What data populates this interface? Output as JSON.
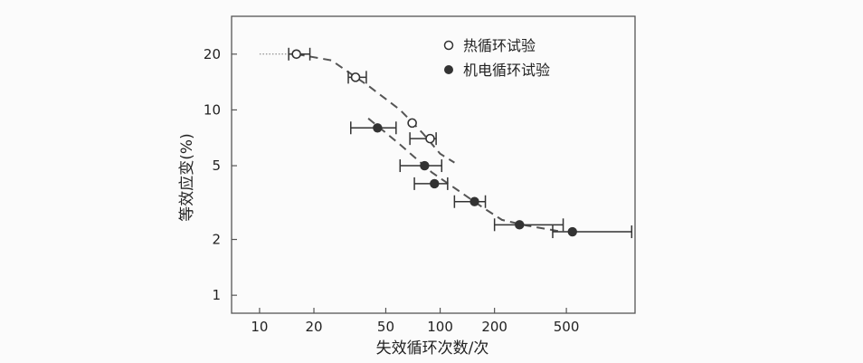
{
  "chart_data": {
    "type": "scatter",
    "x_scale": "log",
    "y_scale": "log",
    "xlabel": "失效循环次数/次",
    "ylabel": "等效应变(%)",
    "xlim": [
      7,
      1200
    ],
    "ylim": [
      0.8,
      32
    ],
    "x_ticks": [
      {
        "value": 10,
        "label": "10"
      },
      {
        "value": 20,
        "label": "20"
      },
      {
        "value": 50,
        "label": "50"
      },
      {
        "value": 100,
        "label": "100"
      },
      {
        "value": 200,
        "label": "200"
      },
      {
        "value": 500,
        "label": "500"
      }
    ],
    "y_ticks": [
      {
        "value": 1,
        "label": "1"
      },
      {
        "value": 2,
        "label": "2"
      },
      {
        "value": 5,
        "label": "5"
      },
      {
        "value": 10,
        "label": "10"
      },
      {
        "value": 20,
        "label": "20"
      }
    ],
    "legend_position": "top-right",
    "series": [
      {
        "name": "热循环试验",
        "marker": "open-circle",
        "points": [
          {
            "x": 16,
            "y": 20,
            "xerr": [
              14.5,
              19
            ]
          },
          {
            "x": 34,
            "y": 15,
            "xerr": [
              31,
              39
            ]
          },
          {
            "x": 70,
            "y": 8.5,
            "xerr": null
          },
          {
            "x": 88,
            "y": 7,
            "xerr": [
              68,
              95
            ]
          }
        ],
        "trend": [
          [
            16,
            20
          ],
          [
            25,
            18.5
          ],
          [
            40,
            13.5
          ],
          [
            60,
            10
          ],
          [
            80,
            7.5
          ],
          [
            100,
            5.8
          ],
          [
            120,
            5.2
          ]
        ]
      },
      {
        "name": "机电循环试验",
        "marker": "filled-circle",
        "points": [
          {
            "x": 45,
            "y": 8,
            "xerr": [
              32,
              57
            ]
          },
          {
            "x": 82,
            "y": 5,
            "xerr": [
              60,
              102
            ]
          },
          {
            "x": 93,
            "y": 4,
            "xerr": [
              72,
              110
            ]
          },
          {
            "x": 155,
            "y": 3.2,
            "xerr": [
              120,
              178
            ]
          },
          {
            "x": 275,
            "y": 2.4,
            "xerr": [
              200,
              480
            ]
          },
          {
            "x": 540,
            "y": 2.2,
            "xerr": [
              420,
              1150
            ]
          }
        ],
        "trend": [
          [
            40,
            9
          ],
          [
            60,
            6.5
          ],
          [
            90,
            4.6
          ],
          [
            130,
            3.6
          ],
          [
            170,
            3.0
          ],
          [
            220,
            2.55
          ],
          [
            300,
            2.38
          ],
          [
            450,
            2.22
          ]
        ]
      }
    ],
    "reference_line": {
      "y": 20,
      "x_from": 10,
      "x_to": 15,
      "style": "dotted"
    }
  }
}
